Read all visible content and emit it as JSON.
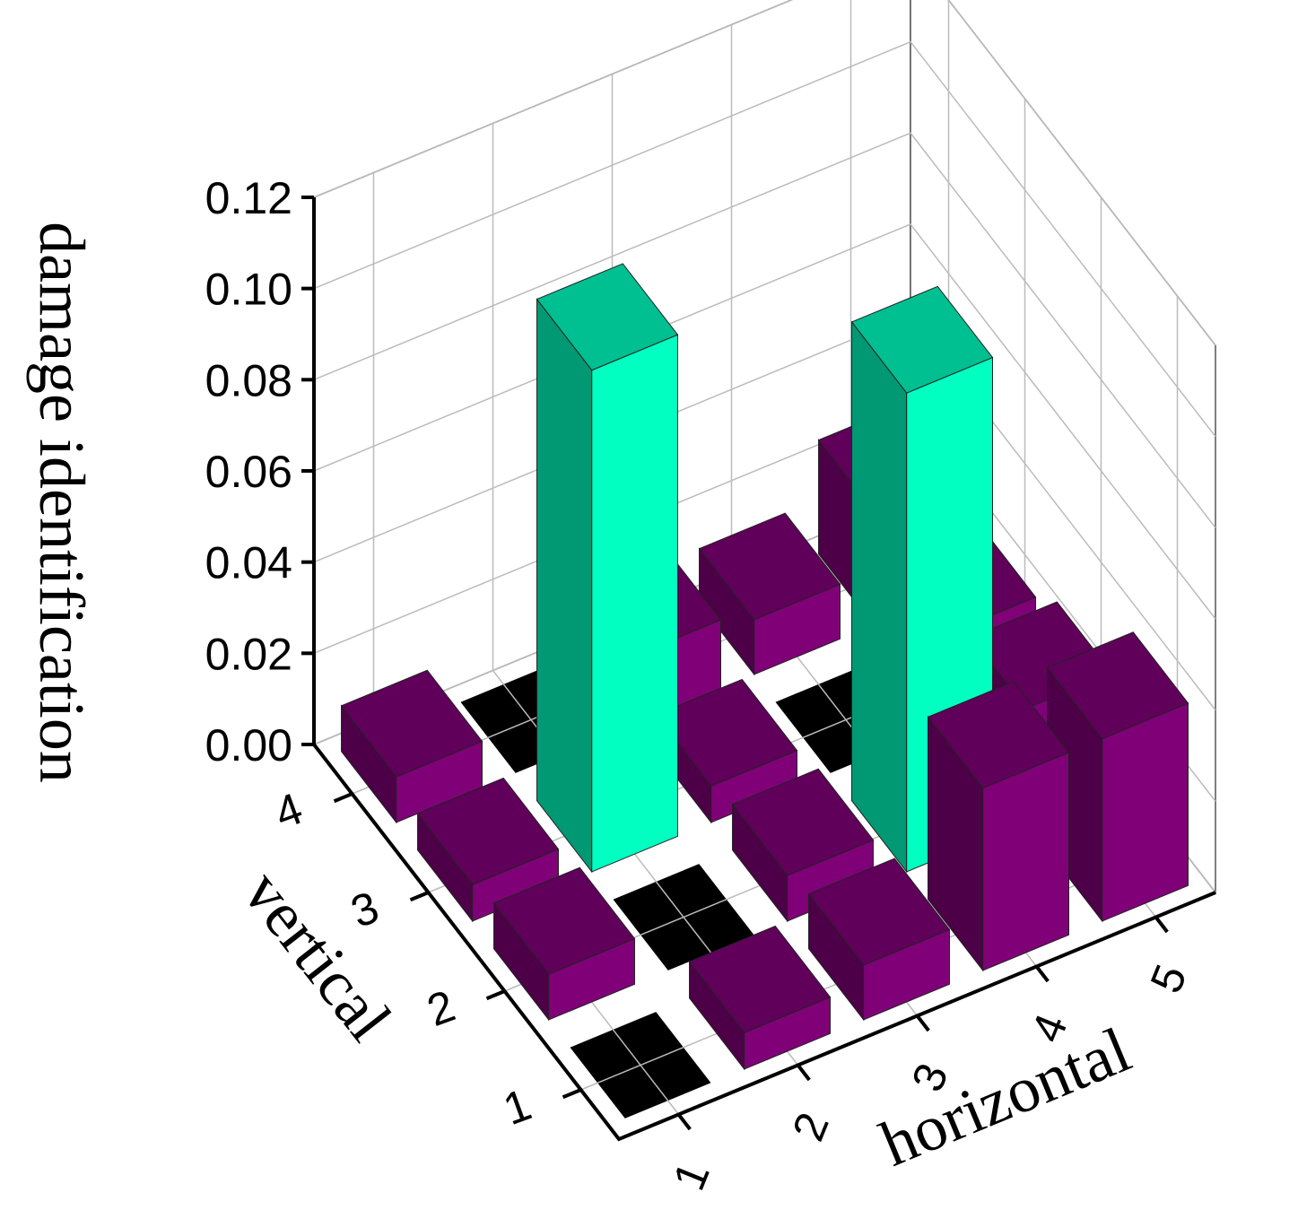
{
  "chart_data": {
    "type": "bar3d",
    "xlabel": "horizontal",
    "ylabel": "vertical",
    "zlabel": "damage identification",
    "x_categories": [
      "1",
      "2",
      "3",
      "4",
      "5"
    ],
    "y_categories": [
      "1",
      "2",
      "3",
      "4"
    ],
    "values": [
      [
        0,
        0.008,
        0.012,
        0.04,
        0.04
      ],
      [
        0.01,
        0,
        0.01,
        0.105,
        0.025
      ],
      [
        0.008,
        0.11,
        0.008,
        0,
        0.02
      ],
      [
        0.01,
        0,
        0.015,
        0.012,
        0.025
      ]
    ],
    "colors": [
      [
        "#000000",
        "#800078",
        "#800078",
        "#800078",
        "#800078"
      ],
      [
        "#800078",
        "#000000",
        "#800078",
        "#00ffc0",
        "#800078"
      ],
      [
        "#800078",
        "#00ffc0",
        "#800078",
        "#000000",
        "#800078"
      ],
      [
        "#800078",
        "#000000",
        "#800078",
        "#800078",
        "#800078"
      ]
    ],
    "zlim": [
      0,
      0.12
    ],
    "zticks": [
      {
        "value": 0,
        "label": "0.00"
      },
      {
        "value": 0.02,
        "label": "0.02"
      },
      {
        "value": 0.04,
        "label": "0.04"
      },
      {
        "value": 0.06,
        "label": "0.06"
      },
      {
        "value": 0.08,
        "label": "0.08"
      },
      {
        "value": 0.1,
        "label": "0.10"
      },
      {
        "value": 0.12,
        "label": "0.12"
      }
    ],
    "grid": true
  }
}
